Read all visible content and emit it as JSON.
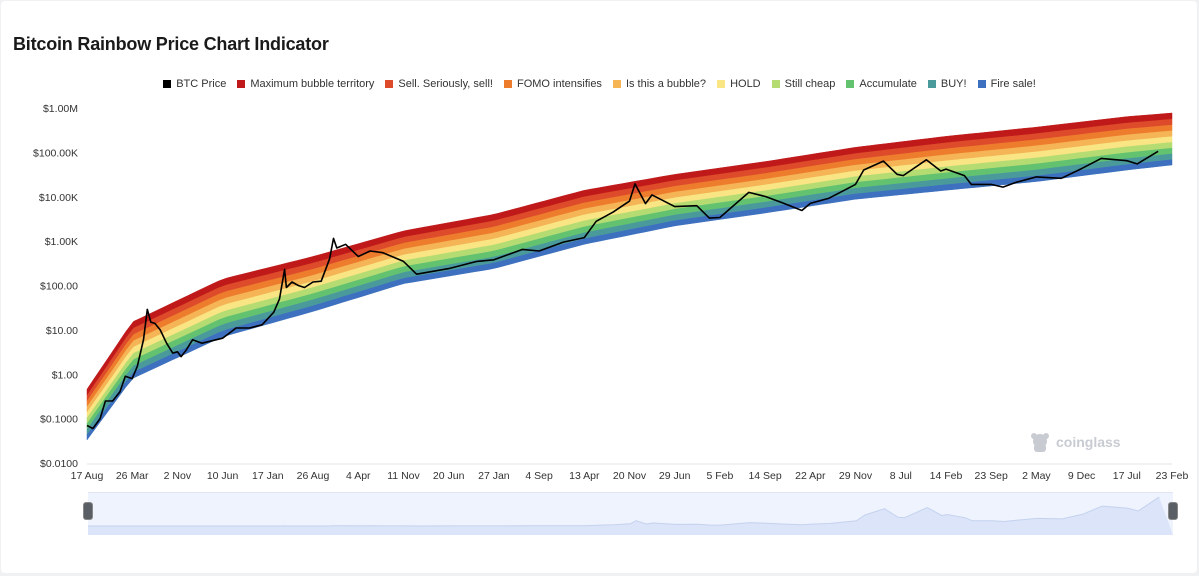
{
  "page": {
    "title": "Bitcoin Rainbow Price Chart Indicator",
    "watermark": "coinglass",
    "colors": {
      "btc_line": "#000000",
      "navigator_fill": "#dbe4f8",
      "navigator_line": "#c4d2ef"
    }
  },
  "legend": [
    {
      "label": "BTC Price",
      "color": "#000000"
    },
    {
      "label": "Maximum bubble territory",
      "color": "#c0191a"
    },
    {
      "label": "Sell. Seriously, sell!",
      "color": "#dd4b2a"
    },
    {
      "label": "FOMO intensifies",
      "color": "#ee7c2d"
    },
    {
      "label": "Is this a bubble?",
      "color": "#f5b455"
    },
    {
      "label": "HOLD",
      "color": "#f9e583"
    },
    {
      "label": "Still cheap",
      "color": "#b5dc72"
    },
    {
      "label": "Accumulate",
      "color": "#62c270"
    },
    {
      "label": "BUY!",
      "color": "#4a9a9c"
    },
    {
      "label": "Fire sale!",
      "color": "#3d70be"
    }
  ],
  "chart_data": {
    "type": "area",
    "title": "Bitcoin Rainbow Price Chart Indicator",
    "y_scale": "log",
    "ylim": [
      0.01,
      1000000
    ],
    "y_tick_labels": [
      "$1.00M",
      "$100.00K",
      "$10.00K",
      "$1.00K",
      "$100.00",
      "$10.00",
      "$1.00",
      "$0.1000",
      "$0.0100"
    ],
    "y_tick_values": [
      1000000,
      100000,
      10000,
      1000,
      100,
      10,
      1,
      0.1,
      0.01
    ],
    "x_tick_labels": [
      "17 Aug",
      "26 Mar",
      "2 Nov",
      "10 Jun",
      "17 Jan",
      "26 Aug",
      "4 Apr",
      "11 Nov",
      "20 Jun",
      "27 Jan",
      "4 Sep",
      "13 Apr",
      "20 Nov",
      "29 Jun",
      "5 Feb",
      "14 Sep",
      "22 Apr",
      "29 Nov",
      "8 Jul",
      "14 Feb",
      "23 Sep",
      "2 May",
      "9 Dec",
      "17 Jul",
      "23 Feb"
    ],
    "x_tick_dates": [
      "2010-08-17",
      "2011-03-26",
      "2011-11-02",
      "2012-06-10",
      "2013-01-17",
      "2013-08-26",
      "2014-04-04",
      "2014-11-11",
      "2015-06-20",
      "2016-01-27",
      "2016-09-04",
      "2017-04-13",
      "2017-11-20",
      "2018-06-29",
      "2019-02-05",
      "2019-09-14",
      "2020-04-22",
      "2020-11-29",
      "2021-07-08",
      "2022-02-14",
      "2022-09-23",
      "2023-05-02",
      "2023-12-09",
      "2024-07-17",
      "2025-02-23"
    ],
    "x_range": [
      "2010-08-17",
      "2025-02-23"
    ],
    "grid": false,
    "legend_position": "top-center",
    "bands": {
      "names": [
        "Fire sale!",
        "BUY!",
        "Accumulate",
        "Still cheap",
        "HOLD",
        "Is this a bubble?",
        "FOMO intensifies",
        "Sell. Seriously, sell!",
        "Maximum bubble territory"
      ],
      "x": [
        "2010-08-17",
        "2011-03-26",
        "2012-06-10",
        "2013-08-26",
        "2014-11-11",
        "2016-01-27",
        "2017-04-13",
        "2018-06-29",
        "2019-09-14",
        "2020-11-29",
        "2022-02-14",
        "2023-05-02",
        "2024-07-17",
        "2025-02-23"
      ],
      "lower": [
        0.033,
        0.8,
        7,
        26,
        110,
        240,
        850,
        2200,
        4300,
        8800,
        14000,
        22000,
        40000,
        52000
      ],
      "upper": [
        0.46,
        15,
        140,
        450,
        1700,
        4000,
        14000,
        32000,
        62000,
        130000,
        230000,
        370000,
        640000,
        770000
      ]
    },
    "series": [
      {
        "name": "BTC Price",
        "x": [
          "2010-08-17",
          "2010-09-15",
          "2010-10-20",
          "2010-11-15",
          "2010-12-20",
          "2011-01-25",
          "2011-02-20",
          "2011-03-26",
          "2011-04-20",
          "2011-05-20",
          "2011-06-08",
          "2011-06-25",
          "2011-07-15",
          "2011-08-10",
          "2011-09-10",
          "2011-10-10",
          "2011-11-02",
          "2011-11-20",
          "2011-12-15",
          "2012-01-15",
          "2012-03-01",
          "2012-06-10",
          "2012-08-15",
          "2012-10-20",
          "2012-12-20",
          "2013-02-15",
          "2013-03-15",
          "2013-04-09",
          "2013-04-18",
          "2013-05-15",
          "2013-06-15",
          "2013-07-15",
          "2013-08-26",
          "2013-10-05",
          "2013-11-15",
          "2013-12-04",
          "2013-12-20",
          "2014-02-01",
          "2014-04-04",
          "2014-06-01",
          "2014-08-01",
          "2014-11-11",
          "2015-01-14",
          "2015-06-20",
          "2015-11-05",
          "2016-01-27",
          "2016-06-15",
          "2016-09-04",
          "2017-01-01",
          "2017-04-13",
          "2017-06-10",
          "2017-09-01",
          "2017-11-20",
          "2017-12-17",
          "2018-02-06",
          "2018-03-10",
          "2018-06-29",
          "2018-10-15",
          "2018-12-15",
          "2019-02-05",
          "2019-06-26",
          "2019-09-14",
          "2019-12-15",
          "2020-03-12",
          "2020-04-22",
          "2020-07-20",
          "2020-11-29",
          "2021-01-08",
          "2021-04-14",
          "2021-06-20",
          "2021-07-20",
          "2021-11-10",
          "2022-01-20",
          "2022-02-14",
          "2022-05-15",
          "2022-06-18",
          "2022-09-23",
          "2022-11-20",
          "2023-01-20",
          "2023-05-02",
          "2023-09-01",
          "2023-12-09",
          "2024-03-14",
          "2024-07-17",
          "2024-09-06",
          "2024-12-17"
        ],
        "y": [
          0.07,
          0.06,
          0.1,
          0.25,
          0.25,
          0.4,
          0.9,
          0.8,
          1.5,
          6,
          29,
          15,
          14,
          10,
          5,
          3,
          3.2,
          2.5,
          3.5,
          6,
          5,
          6.5,
          11,
          11,
          13,
          25,
          50,
          230,
          90,
          120,
          100,
          90,
          120,
          125,
          400,
          1150,
          700,
          850,
          450,
          600,
          550,
          350,
          180,
          240,
          350,
          380,
          650,
          600,
          950,
          1200,
          2800,
          4500,
          8000,
          19500,
          7000,
          11000,
          6000,
          6300,
          3300,
          3400,
          12500,
          10200,
          7100,
          4900,
          7100,
          9200,
          19000,
          40000,
          63500,
          32000,
          30000,
          68000,
          38000,
          42000,
          30000,
          19000,
          19000,
          16500,
          21000,
          28000,
          26000,
          43000,
          73000,
          65000,
          55000,
          106000
        ]
      }
    ]
  }
}
